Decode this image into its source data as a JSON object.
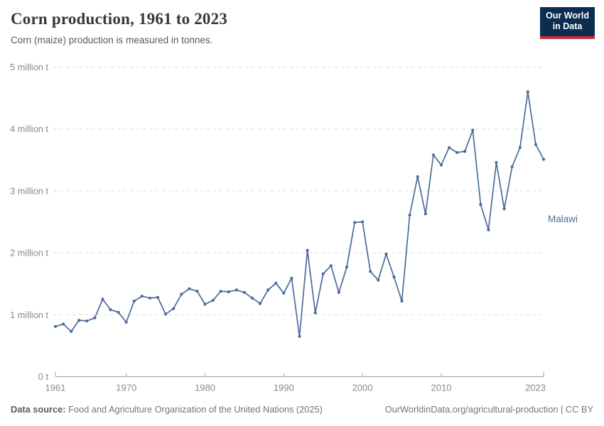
{
  "header": {
    "title": "Corn production, 1961 to 2023",
    "subtitle": "Corn (maize) production is measured in tonnes."
  },
  "logo": {
    "line1": "Our World",
    "line2": "in Data"
  },
  "footer": {
    "source_label": "Data source:",
    "source_text": " Food and Agriculture Organization of the United Nations (2025)",
    "right_text": "OurWorldinData.org/agricultural-production | CC BY"
  },
  "colors": {
    "line": "#4C6A9C",
    "grid": "#d9d9d9",
    "axis": "#a1a1a1",
    "tick": "#adadad",
    "tick_label": "#8a8a8a",
    "logo_bg": "#0c2d4f",
    "logo_red": "#c7303c"
  },
  "chart_data": {
    "type": "line",
    "title": "Corn production, 1961 to 2023",
    "ylabel": "",
    "xlabel": "",
    "unit": "tonnes",
    "entity": "Malawi",
    "legend_position": "end-of-line-label",
    "grid": "horizontal-dashed",
    "ylim_million_tonnes": [
      0,
      5
    ],
    "y_tick_labels": [
      "0 t",
      "1 million t",
      "2 million t",
      "3 million t",
      "4 million t",
      "5 million t"
    ],
    "x_ticks": [
      1961,
      1970,
      1980,
      1990,
      2000,
      2010,
      2023
    ],
    "x": [
      1961,
      1962,
      1963,
      1964,
      1965,
      1966,
      1967,
      1968,
      1969,
      1970,
      1971,
      1972,
      1973,
      1974,
      1975,
      1976,
      1977,
      1978,
      1979,
      1980,
      1981,
      1982,
      1983,
      1984,
      1985,
      1986,
      1987,
      1988,
      1989,
      1990,
      1991,
      1992,
      1993,
      1994,
      1995,
      1996,
      1997,
      1998,
      1999,
      2000,
      2001,
      2002,
      2003,
      2004,
      2005,
      2006,
      2007,
      2008,
      2009,
      2010,
      2011,
      2012,
      2013,
      2014,
      2015,
      2016,
      2017,
      2018,
      2019,
      2020,
      2021,
      2022,
      2023
    ],
    "values_million_tonnes": [
      0.81,
      0.85,
      0.73,
      0.91,
      0.9,
      0.95,
      1.25,
      1.08,
      1.04,
      0.88,
      1.22,
      1.3,
      1.27,
      1.28,
      1.01,
      1.1,
      1.33,
      1.42,
      1.38,
      1.17,
      1.23,
      1.38,
      1.37,
      1.4,
      1.36,
      1.27,
      1.18,
      1.4,
      1.51,
      1.35,
      1.59,
      0.65,
      2.04,
      1.03,
      1.66,
      1.79,
      1.36,
      1.77,
      2.49,
      2.5,
      1.7,
      1.56,
      1.98,
      1.61,
      1.22,
      2.61,
      3.23,
      2.63,
      3.58,
      3.42,
      3.7,
      3.62,
      3.64,
      3.98,
      2.78,
      2.37,
      3.46,
      2.71,
      3.39,
      3.7,
      4.6,
      3.75,
      3.51
    ]
  }
}
